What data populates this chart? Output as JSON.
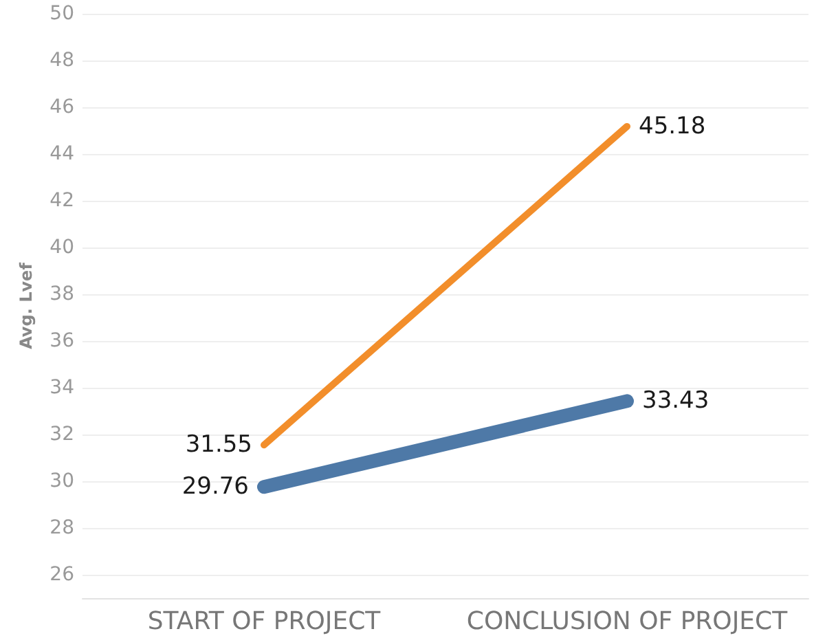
{
  "chart_data": {
    "type": "line",
    "ylabel": "Avg. Lvef",
    "categories": [
      "START OF PROJECT",
      "CONCLUSION OF PROJECT"
    ],
    "series": [
      {
        "color": "#4e79a7",
        "values": [
          29.76,
          33.43
        ]
      },
      {
        "color": "#f28e2b",
        "values": [
          31.55,
          45.18
        ]
      }
    ],
    "ylim": [
      25,
      50
    ],
    "yticks": [
      26,
      28,
      30,
      32,
      34,
      36,
      38,
      40,
      42,
      44,
      46,
      48,
      50
    ],
    "grid": "y",
    "data_labels": true,
    "marker": "none",
    "line_style": "solid"
  }
}
